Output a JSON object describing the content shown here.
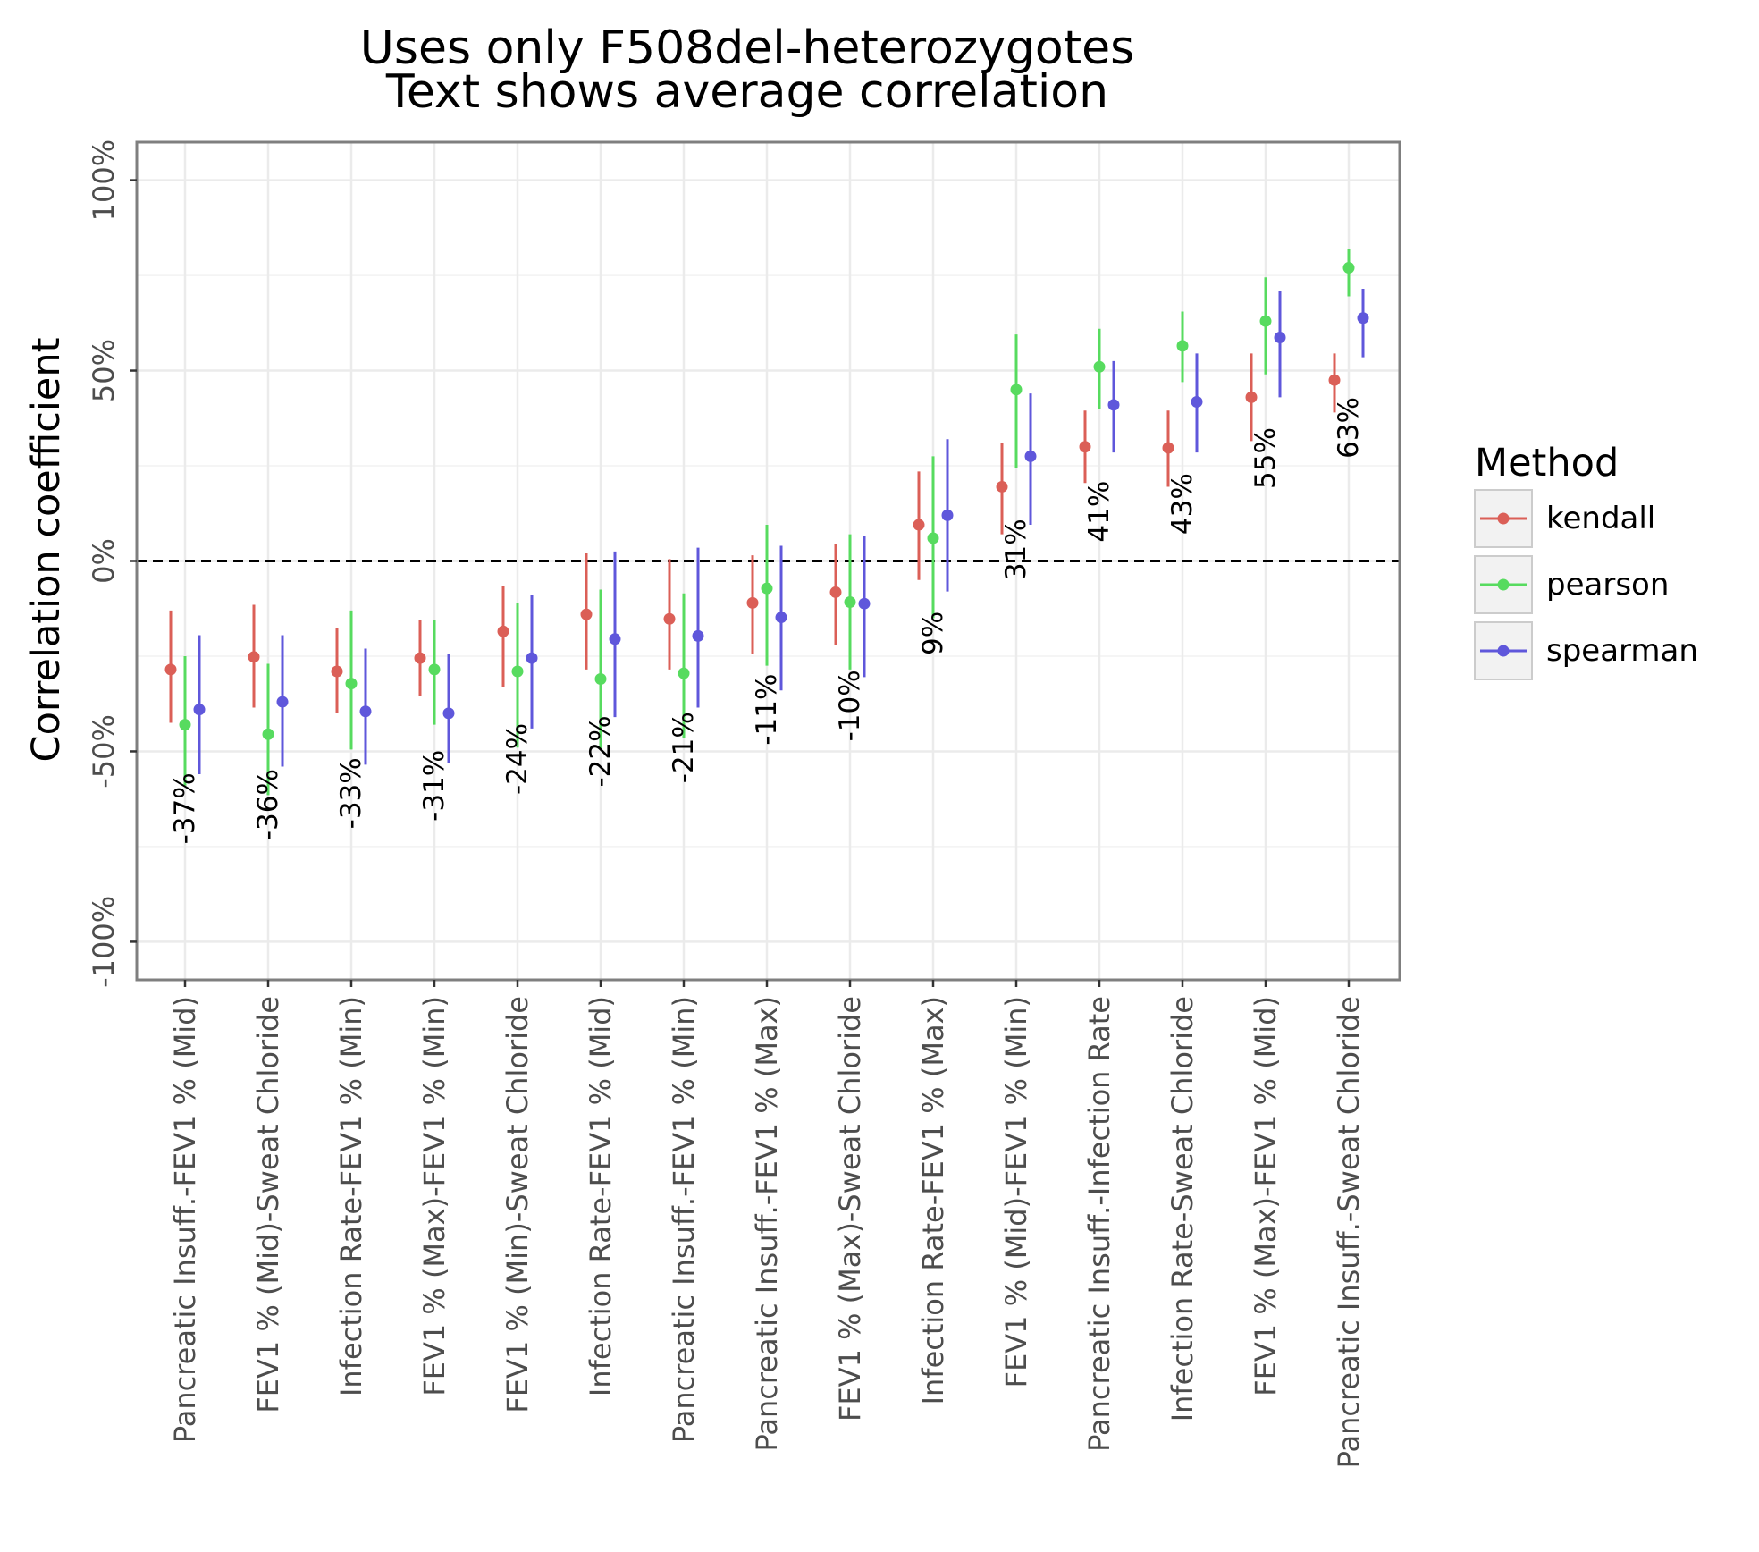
{
  "chart_data": {
    "type": "scatter",
    "title": "Uses only F508del-heterozygotes",
    "subtitle": "Text shows average correlation",
    "ylabel": "Correlation coefficient",
    "xlabel": "",
    "ylim": [
      -1.1,
      1.1
    ],
    "yticks": [
      -1,
      -0.5,
      0,
      0.5,
      1
    ],
    "ytick_labels": [
      "-100%",
      "-50%",
      "0%",
      "50%",
      "100%"
    ],
    "grid": true,
    "reference_line": {
      "y": 0,
      "style": "dashed"
    },
    "legend": {
      "title": "Method",
      "position": "right"
    },
    "categories": [
      "Pancreatic Insuff.-FEV1 % (Mid)",
      "FEV1 % (Mid)-Sweat Chloride",
      "Infection Rate-FEV1 % (Min)",
      "FEV1 % (Max)-FEV1 % (Min)",
      "FEV1 % (Min)-Sweat Chloride",
      "Infection Rate-FEV1 % (Mid)",
      "Pancreatic Insuff.-FEV1 % (Min)",
      "Pancreatic Insuff.-FEV1 % (Max)",
      "FEV1 % (Max)-Sweat Chloride",
      "Infection Rate-FEV1 % (Max)",
      "FEV1 % (Mid)-FEV1 % (Min)",
      "Pancreatic Insuff.-Infection Rate",
      "Infection Rate-Sweat Chloride",
      "FEV1 % (Max)-FEV1 % (Mid)",
      "Pancreatic Insuff.-Sweat Chloride"
    ],
    "average_labels": [
      "-37%",
      "-36%",
      "-33%",
      "-31%",
      "-24%",
      "-22%",
      "-21%",
      "-11%",
      "-10%",
      "9%",
      "31%",
      "41%",
      "43%",
      "55%",
      "63%"
    ],
    "average_values": [
      -0.37,
      -0.36,
      -0.33,
      -0.31,
      -0.24,
      -0.22,
      -0.21,
      -0.11,
      -0.1,
      0.09,
      0.31,
      0.41,
      0.43,
      0.55,
      0.63
    ],
    "series": [
      {
        "name": "kendall",
        "color": "#db5f57",
        "values": [
          -0.285,
          -0.252,
          -0.29,
          -0.255,
          -0.185,
          -0.14,
          -0.152,
          -0.11,
          -0.082,
          0.095,
          0.195,
          0.3,
          0.297,
          0.43,
          0.475
        ],
        "lower": [
          -0.425,
          -0.385,
          -0.4,
          -0.355,
          -0.33,
          -0.285,
          -0.285,
          -0.245,
          -0.22,
          -0.05,
          0.07,
          0.205,
          0.195,
          0.315,
          0.39
        ],
        "upper": [
          -0.13,
          -0.115,
          -0.175,
          -0.155,
          -0.065,
          0.02,
          0.005,
          0.015,
          0.045,
          0.235,
          0.31,
          0.395,
          0.395,
          0.545,
          0.545
        ]
      },
      {
        "name": "pearson",
        "color": "#57db5f",
        "values": [
          -0.43,
          -0.455,
          -0.322,
          -0.285,
          -0.29,
          -0.31,
          -0.295,
          -0.072,
          -0.108,
          0.06,
          0.45,
          0.51,
          0.565,
          0.63,
          0.77
        ],
        "lower": [
          -0.59,
          -0.615,
          -0.495,
          -0.43,
          -0.49,
          -0.495,
          -0.465,
          -0.275,
          -0.285,
          -0.15,
          0.245,
          0.4,
          0.47,
          0.49,
          0.695
        ],
        "upper": [
          -0.25,
          -0.27,
          -0.13,
          -0.155,
          -0.11,
          -0.075,
          -0.085,
          0.095,
          0.07,
          0.275,
          0.595,
          0.61,
          0.655,
          0.745,
          0.82
        ]
      },
      {
        "name": "spearman",
        "color": "#5f57db",
        "values": [
          -0.39,
          -0.37,
          -0.395,
          -0.4,
          -0.255,
          -0.205,
          -0.197,
          -0.148,
          -0.112,
          0.12,
          0.275,
          0.41,
          0.418,
          0.587,
          0.638
        ],
        "lower": [
          -0.56,
          -0.54,
          -0.535,
          -0.53,
          -0.44,
          -0.41,
          -0.385,
          -0.34,
          -0.305,
          -0.08,
          0.095,
          0.285,
          0.285,
          0.43,
          0.535
        ],
        "upper": [
          -0.195,
          -0.195,
          -0.23,
          -0.245,
          -0.09,
          0.025,
          0.035,
          0.04,
          0.065,
          0.32,
          0.44,
          0.525,
          0.545,
          0.71,
          0.715
        ]
      }
    ]
  }
}
